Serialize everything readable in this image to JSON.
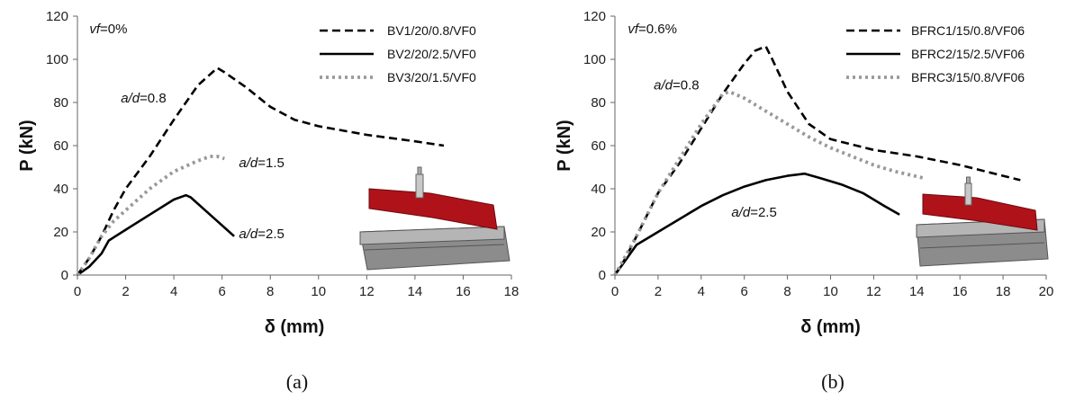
{
  "chart_data": [
    {
      "type": "line",
      "panel_label": "(a)",
      "xlabel": "δ (mm)",
      "ylabel": "P (kN)",
      "xlim": [
        0,
        18
      ],
      "ylim": [
        0,
        120
      ],
      "xticks": [
        0,
        2,
        4,
        6,
        8,
        10,
        12,
        14,
        16,
        18
      ],
      "yticks": [
        0,
        20,
        40,
        60,
        80,
        100,
        120
      ],
      "grid": false,
      "legend_position": "top-right",
      "annotations": [
        {
          "prefix": "vf",
          "text": "=0%",
          "x": 0.5,
          "y": 112
        },
        {
          "prefix": "a/d",
          "text": "=0.8",
          "x": 1.8,
          "y": 80
        },
        {
          "prefix": "a/d",
          "text": "=1.5",
          "x": 6.7,
          "y": 50
        },
        {
          "prefix": "a/d",
          "text": "=2.5",
          "x": 6.7,
          "y": 17
        }
      ],
      "series": [
        {
          "name": "BV1/20/0.8/VF0",
          "style": "dashed",
          "color": "#000000",
          "x": [
            0,
            0.5,
            1.0,
            1.5,
            2.0,
            3.0,
            4.0,
            5.0,
            5.5,
            5.8,
            6.1,
            7.0,
            8.0,
            9.0,
            10.0,
            12.0,
            14.0,
            15.2
          ],
          "y": [
            0,
            8,
            18,
            30,
            40,
            55,
            72,
            88,
            93,
            96,
            94,
            87,
            78,
            72,
            69,
            65,
            62,
            60
          ]
        },
        {
          "name": "BV2/20/2.5/VF0",
          "style": "solid",
          "color": "#000000",
          "x": [
            0,
            0.5,
            1.0,
            1.3,
            2.0,
            3.0,
            4.0,
            4.5,
            4.7,
            5.5,
            6.5
          ],
          "y": [
            0,
            4,
            10,
            16,
            21,
            28,
            35,
            37,
            36,
            28,
            18
          ]
        },
        {
          "name": "BV3/20/1.5/VF0",
          "style": "dotted",
          "color": "#999999",
          "x": [
            0,
            0.5,
            1.0,
            1.5,
            2.0,
            3.0,
            4.0,
            5.0,
            5.5,
            5.8,
            6.1
          ],
          "y": [
            0,
            8,
            18,
            25,
            30,
            40,
            48,
            53,
            55,
            55,
            54
          ]
        }
      ]
    },
    {
      "type": "line",
      "panel_label": "(b)",
      "xlabel": "δ (mm)",
      "ylabel": "P (kN)",
      "xlim": [
        0,
        20
      ],
      "ylim": [
        0,
        120
      ],
      "xticks": [
        0,
        2,
        4,
        6,
        8,
        10,
        12,
        14,
        16,
        18,
        20
      ],
      "yticks": [
        0,
        20,
        40,
        60,
        80,
        100,
        120
      ],
      "grid": false,
      "legend_position": "top-right",
      "annotations": [
        {
          "prefix": "vf",
          "text": "=0.6%",
          "x": 0.6,
          "y": 112
        },
        {
          "prefix": "a/d",
          "text": "=0.8",
          "x": 1.8,
          "y": 86
        },
        {
          "prefix": "a/d",
          "text": "=2.5",
          "x": 5.4,
          "y": 27
        }
      ],
      "series": [
        {
          "name": "BFRC1/15/0.8/VF06",
          "style": "dashed",
          "color": "#000000",
          "x": [
            0,
            0.5,
            1.0,
            2.0,
            3.0,
            4.0,
            5.0,
            6.0,
            6.5,
            7.0,
            7.3,
            8.0,
            9.0,
            10.0,
            12.0,
            14.0,
            16.0,
            18.0,
            18.8
          ],
          "y": [
            0,
            8,
            18,
            38,
            52,
            68,
            84,
            98,
            104,
            106,
            100,
            85,
            70,
            63,
            58,
            55,
            51,
            46,
            44
          ]
        },
        {
          "name": "BFRC2/15/2.5/VF06",
          "style": "solid",
          "color": "#000000",
          "x": [
            0,
            1.0,
            2.0,
            3.0,
            4.0,
            5.0,
            6.0,
            7.0,
            8.0,
            8.8,
            9.5,
            10.5,
            11.5,
            12.5,
            13.2
          ],
          "y": [
            0,
            14,
            20,
            26,
            32,
            37,
            41,
            44,
            46,
            47,
            45,
            42,
            38,
            32,
            28
          ]
        },
        {
          "name": "BFRC3/15/0.8/VF06",
          "style": "dotted",
          "color": "#999999",
          "x": [
            0,
            1.0,
            2.0,
            3.0,
            4.0,
            5.0,
            5.3,
            6.0,
            7.0,
            8.0,
            9.0,
            10.0,
            11.0,
            12.0,
            13.0,
            14.3
          ],
          "y": [
            0,
            18,
            38,
            54,
            70,
            84,
            85,
            82,
            76,
            70,
            64,
            59,
            55,
            51,
            48,
            45
          ]
        }
      ]
    }
  ]
}
